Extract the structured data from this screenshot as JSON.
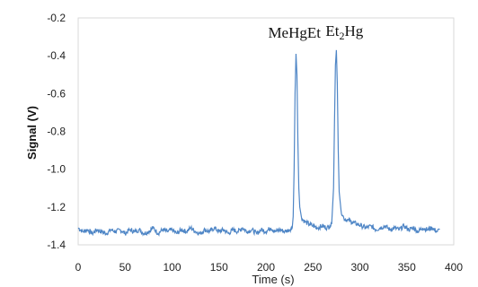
{
  "chart_data": {
    "type": "line",
    "xlabel": "Time (s)",
    "ylabel": "Signal (V)",
    "xlim": [
      0,
      400
    ],
    "ylim": [
      -1.4,
      -0.2
    ],
    "x_ticks": [
      "0",
      "50",
      "100",
      "150",
      "200",
      "250",
      "300",
      "350",
      "400"
    ],
    "y_ticks": [
      "-0.2",
      "-0.4",
      "-0.6",
      "-0.8",
      "-1.0",
      "-1.2",
      "-1.4"
    ],
    "grid": false,
    "legend": "none",
    "line_color": "#4f86c6",
    "annotations": [
      {
        "text": "MeHgEt",
        "x": 232,
        "y": -0.39
      },
      {
        "text_main": "Et",
        "text_sub": "2",
        "text_tail": "Hg",
        "x": 275,
        "y": -0.37
      }
    ],
    "series": [
      {
        "values": [
          [
            0,
            -1.31
          ],
          [
            5,
            -1.33
          ],
          [
            10,
            -1.32
          ],
          [
            15,
            -1.34
          ],
          [
            20,
            -1.32
          ],
          [
            25,
            -1.33
          ],
          [
            30,
            -1.34
          ],
          [
            35,
            -1.32
          ],
          [
            40,
            -1.33
          ],
          [
            45,
            -1.32
          ],
          [
            50,
            -1.34
          ],
          [
            55,
            -1.32
          ],
          [
            60,
            -1.33
          ],
          [
            65,
            -1.32
          ],
          [
            70,
            -1.34
          ],
          [
            75,
            -1.33
          ],
          [
            80,
            -1.31
          ],
          [
            85,
            -1.34
          ],
          [
            90,
            -1.32
          ],
          [
            95,
            -1.33
          ],
          [
            100,
            -1.32
          ],
          [
            105,
            -1.34
          ],
          [
            110,
            -1.32
          ],
          [
            115,
            -1.33
          ],
          [
            120,
            -1.31
          ],
          [
            125,
            -1.33
          ],
          [
            130,
            -1.34
          ],
          [
            135,
            -1.32
          ],
          [
            140,
            -1.33
          ],
          [
            145,
            -1.31
          ],
          [
            150,
            -1.33
          ],
          [
            155,
            -1.32
          ],
          [
            160,
            -1.34
          ],
          [
            165,
            -1.32
          ],
          [
            170,
            -1.33
          ],
          [
            175,
            -1.31
          ],
          [
            180,
            -1.33
          ],
          [
            185,
            -1.32
          ],
          [
            190,
            -1.34
          ],
          [
            195,
            -1.32
          ],
          [
            200,
            -1.33
          ],
          [
            205,
            -1.31
          ],
          [
            210,
            -1.33
          ],
          [
            215,
            -1.32
          ],
          [
            220,
            -1.33
          ],
          [
            225,
            -1.32
          ],
          [
            228,
            -1.31
          ],
          [
            229,
            -1.25
          ],
          [
            230,
            -1.0
          ],
          [
            231,
            -0.6
          ],
          [
            232,
            -0.39
          ],
          [
            233,
            -0.5
          ],
          [
            234,
            -0.85
          ],
          [
            235,
            -1.1
          ],
          [
            236,
            -1.2
          ],
          [
            238,
            -1.26
          ],
          [
            242,
            -1.28
          ],
          [
            246,
            -1.29
          ],
          [
            250,
            -1.3
          ],
          [
            255,
            -1.31
          ],
          [
            260,
            -1.3
          ],
          [
            265,
            -1.31
          ],
          [
            268,
            -1.3
          ],
          [
            270,
            -1.29
          ],
          [
            272,
            -1.1
          ],
          [
            273,
            -0.75
          ],
          [
            274,
            -0.45
          ],
          [
            275,
            -0.37
          ],
          [
            276,
            -0.55
          ],
          [
            277,
            -0.9
          ],
          [
            278,
            -1.12
          ],
          [
            280,
            -1.22
          ],
          [
            283,
            -1.26
          ],
          [
            287,
            -1.27
          ],
          [
            292,
            -1.28
          ],
          [
            297,
            -1.29
          ],
          [
            302,
            -1.3
          ],
          [
            307,
            -1.31
          ],
          [
            312,
            -1.3
          ],
          [
            317,
            -1.32
          ],
          [
            322,
            -1.31
          ],
          [
            327,
            -1.3
          ],
          [
            332,
            -1.32
          ],
          [
            337,
            -1.31
          ],
          [
            342,
            -1.32
          ],
          [
            347,
            -1.3
          ],
          [
            352,
            -1.32
          ],
          [
            357,
            -1.31
          ],
          [
            362,
            -1.33
          ],
          [
            367,
            -1.31
          ],
          [
            372,
            -1.32
          ],
          [
            377,
            -1.31
          ],
          [
            382,
            -1.33
          ],
          [
            385,
            -1.32
          ]
        ]
      }
    ]
  }
}
